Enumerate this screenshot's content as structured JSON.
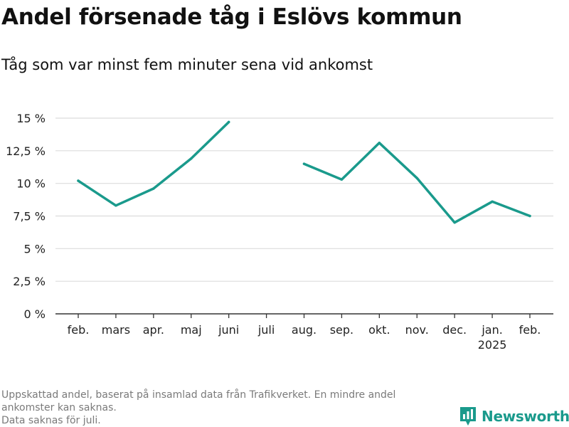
{
  "title": "Andel försenade tåg i Eslövs kommun",
  "subtitle": "Tåg som var minst fem minuter sena vid ankomst",
  "footnote": {
    "line1": "Uppskattad andel, baserat på insamlad data från Trafikverket. En mindre andel",
    "line2": "ankomster kan saknas.",
    "line3": "Data saknas för juli."
  },
  "logo": {
    "text": "Newsworthy",
    "icon": "newsworthy-logo-icon",
    "color": "#1a9a8c"
  },
  "chart_data": {
    "type": "line",
    "categories": [
      "feb.",
      "mars",
      "apr.",
      "maj",
      "juni",
      "juli",
      "aug.",
      "sep.",
      "okt.",
      "nov.",
      "dec.",
      "jan.",
      "feb."
    ],
    "category_sublabels": [
      "",
      "",
      "",
      "",
      "",
      "",
      "",
      "",
      "",
      "",
      "",
      "2025",
      ""
    ],
    "series": [
      {
        "values": [
          10.2,
          8.3,
          9.6,
          11.9,
          14.7,
          null,
          11.5,
          10.3,
          13.1,
          10.4,
          7.0,
          8.6,
          7.5
        ],
        "color": "#1a9a8c"
      }
    ],
    "yticks": [
      0,
      2.5,
      5,
      7.5,
      10,
      12.5,
      15
    ],
    "ytick_labels": [
      "0 %",
      "2,5 %",
      "5 %",
      "7,5 %",
      "10 %",
      "12,5 %",
      "15 %"
    ],
    "ylim": [
      0,
      15
    ],
    "grid": true,
    "legend": "none"
  }
}
